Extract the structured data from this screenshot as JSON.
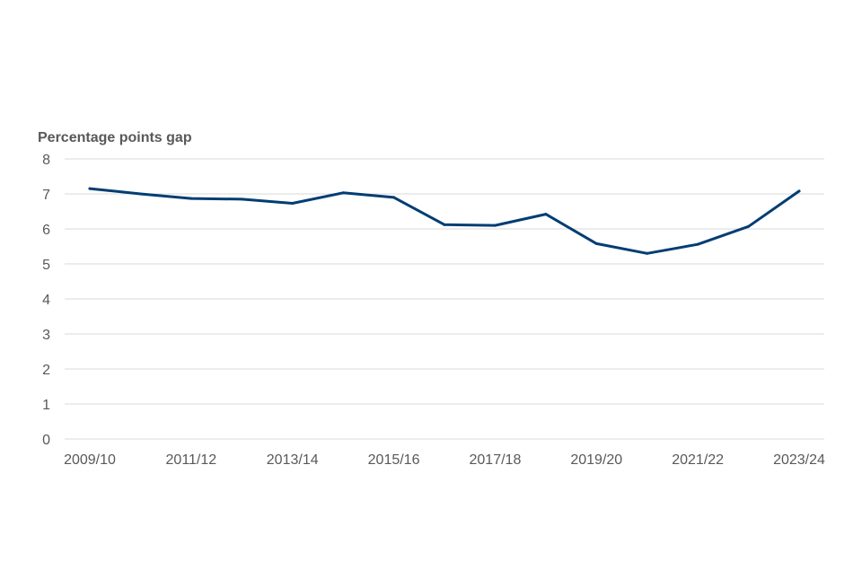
{
  "chart_data": {
    "type": "line",
    "title": "",
    "xlabel": "",
    "ylabel": "Percentage points gap",
    "ylim": [
      0,
      8
    ],
    "yticks": [
      0,
      1,
      2,
      3,
      4,
      5,
      6,
      7,
      8
    ],
    "grid": true,
    "legend": "none",
    "line_color": "#003d73",
    "grid_color": "#d9d9d9",
    "x": [
      "2009/10",
      "2010/11",
      "2011/12",
      "2012/13",
      "2013/14",
      "2014/15",
      "2015/16",
      "2016/17",
      "2017/18",
      "2018/19",
      "2019/20",
      "2020/21",
      "2021/22",
      "2022/23",
      "2023/24"
    ],
    "x_tick_labels": [
      "2009/10",
      "2011/12",
      "2013/14",
      "2015/16",
      "2017/18",
      "2019/20",
      "2021/22",
      "2023/24"
    ],
    "series": [
      {
        "values": [
          7.15,
          7.0,
          6.87,
          6.85,
          6.73,
          7.03,
          6.9,
          6.12,
          6.1,
          6.42,
          5.58,
          5.3,
          5.56,
          6.07,
          7.08
        ]
      }
    ]
  }
}
